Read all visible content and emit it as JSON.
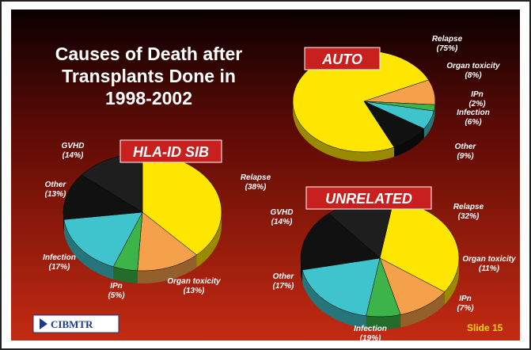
{
  "title": [
    "Causes of Death after",
    "Transplants Done in",
    "1998-2002"
  ],
  "logo": "CIBMTR",
  "slide": "Slide 15",
  "chart_data": [
    {
      "type": "pie",
      "title": "AUTO",
      "categories": [
        "Relapse",
        "Organ toxicity",
        "IPn",
        "Infection",
        "Other"
      ],
      "values": [
        75,
        8,
        2,
        6,
        9
      ],
      "value_labels": [
        "(75%)",
        "(8%)",
        "(2%)",
        "(6%)",
        "(9%)"
      ],
      "colors": [
        "#ffe600",
        "#f5a04a",
        "#3cb44a",
        "#3fc3cc",
        "#111111"
      ]
    },
    {
      "type": "pie",
      "title": "HLA-ID SIB",
      "categories": [
        "Relapse",
        "Organ toxicity",
        "IPn",
        "Infection",
        "Other",
        "GVHD"
      ],
      "values": [
        38,
        13,
        5,
        17,
        13,
        14
      ],
      "value_labels": [
        "(38%)",
        "(13%)",
        "(5%)",
        "(17%)",
        "(13%)",
        "(14%)"
      ],
      "colors": [
        "#ffe600",
        "#f5a04a",
        "#3cb44a",
        "#3fc3cc",
        "#111111",
        "#1e1e1e"
      ]
    },
    {
      "type": "pie",
      "title": "UNRELATED",
      "categories": [
        "Relapse",
        "Organ toxicity",
        "IPn",
        "Infection",
        "Other",
        "GVHD"
      ],
      "values": [
        32,
        11,
        7,
        19,
        17,
        14
      ],
      "value_labels": [
        "(32%)",
        "(11%)",
        "(7%)",
        "(19%)",
        "(17%)",
        "(14%)"
      ],
      "colors": [
        "#ffe600",
        "#f5a04a",
        "#3cb44a",
        "#3fc3cc",
        "#111111",
        "#1e1e1e"
      ]
    }
  ]
}
